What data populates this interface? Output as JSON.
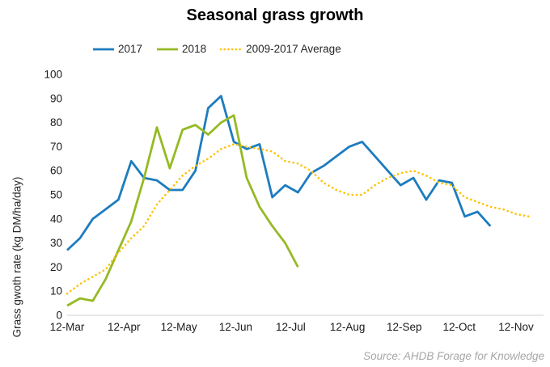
{
  "title": "Seasonal grass growth",
  "source": "Source: AHDB Forage for Knowledge",
  "chart_data": {
    "type": "line",
    "title": "Seasonal grass growth",
    "xlabel": "",
    "ylabel": "Grass gwoth rate (kg DM/ha/day)",
    "ylim": [
      0,
      100
    ],
    "y_step": 10,
    "grid": false,
    "legend_position": "top-center",
    "x_unit": "weeks from 12-Mar",
    "x_tick_labels": [
      "12-Mar",
      "12-Apr",
      "12-May",
      "12-Jun",
      "12-Jul",
      "12-Aug",
      "12-Sep",
      "12-Oct",
      "12-Nov"
    ],
    "tick_day_offsets": [
      0,
      31,
      61,
      92,
      122,
      153,
      184,
      214,
      245
    ],
    "axis_color": "#d9d9d9",
    "tick_text_color": "#1a1a1a",
    "series": [
      {
        "name": "2017",
        "color": "#1d7cbf",
        "style": "solid",
        "start_week": 0,
        "values": [
          27,
          32,
          40,
          44,
          48,
          64,
          57,
          56,
          52,
          52,
          60,
          86,
          91,
          72,
          69,
          71,
          49,
          54,
          51,
          59,
          62,
          66,
          70,
          72,
          66,
          60,
          54,
          57,
          48,
          56,
          55,
          41,
          43,
          37
        ]
      },
      {
        "name": "2018",
        "color": "#95ba24",
        "style": "solid",
        "start_week": 0,
        "values": [
          4,
          7,
          6,
          15,
          27,
          39,
          57,
          78,
          61,
          77,
          79,
          75,
          80,
          83,
          57,
          45,
          37,
          30,
          20
        ]
      },
      {
        "name": "2009-2017 Average",
        "color": "#ffc000",
        "style": "dotted",
        "start_week": 0,
        "values": [
          9,
          13,
          16,
          19,
          26,
          32,
          37,
          46,
          52,
          58,
          62,
          65,
          69,
          71,
          70,
          69,
          68,
          64,
          63,
          60,
          55,
          52,
          50,
          50,
          54,
          57,
          59,
          60,
          58,
          55,
          54,
          49,
          47,
          45,
          44,
          42,
          41
        ]
      }
    ]
  }
}
